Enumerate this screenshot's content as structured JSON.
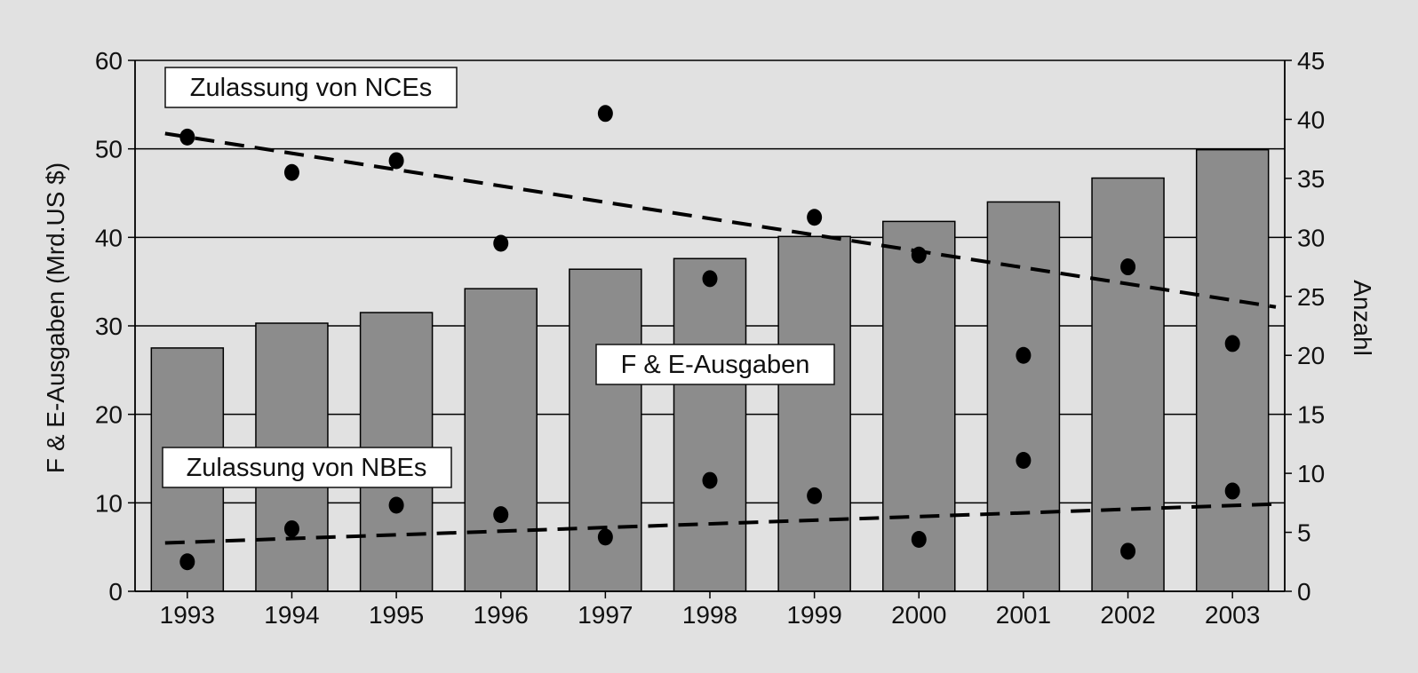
{
  "chart_data": {
    "type": "bar",
    "categories": [
      "1993",
      "1994",
      "1995",
      "1996",
      "1997",
      "1998",
      "1999",
      "2000",
      "2001",
      "2002",
      "2003"
    ],
    "series": [
      {
        "name": "F & E-Ausgaben",
        "type": "bar",
        "axis": "left",
        "values": [
          27.5,
          30.3,
          31.5,
          34.2,
          36.4,
          37.6,
          40.1,
          41.8,
          44.0,
          46.7,
          49.9
        ]
      },
      {
        "name": "Zulassung von NCEs",
        "type": "scatter",
        "axis": "right",
        "values": [
          38.5,
          35.5,
          36.5,
          29.5,
          40.5,
          26.5,
          31.7,
          28.5,
          20.0,
          27.5,
          21.0
        ],
        "trend": [
          38.8,
          24.1
        ]
      },
      {
        "name": "Zulassung von NBEs",
        "type": "scatter",
        "axis": "right",
        "values": [
          2.5,
          5.3,
          7.3,
          6.5,
          4.6,
          9.4,
          8.1,
          4.4,
          11.1,
          3.4,
          8.5
        ],
        "trend": [
          4.1,
          7.4
        ]
      }
    ],
    "ylabel": "F & E-Ausgaben (Mrd.US $)",
    "y2label": "Anzahl",
    "ylim": [
      0,
      60
    ],
    "y2lim": [
      0,
      45
    ],
    "yticks": [
      "0",
      "10",
      "20",
      "30",
      "40",
      "50",
      "60"
    ],
    "y2ticks": [
      "0",
      "5",
      "10",
      "15",
      "20",
      "25",
      "30",
      "35",
      "40",
      "45"
    ],
    "grid": true,
    "colors": {
      "bar": "#8c8c8c",
      "point": "#000000",
      "background": "#e1e1e1"
    }
  }
}
